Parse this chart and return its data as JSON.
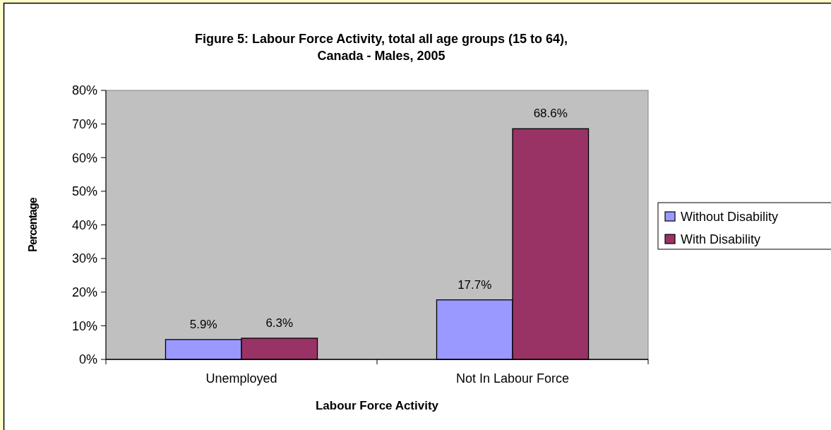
{
  "chart_data": {
    "type": "bar",
    "title": "Figure 5: Labour Force Activity, total all age groups (15 to 64), Canada - Males, 2005",
    "xlabel": "Labour Force Activity",
    "ylabel": "Percentage",
    "categories": [
      "Unemployed",
      "Not In Labour Force"
    ],
    "series": [
      {
        "name": "Without Disability",
        "color": "#9999ff",
        "values": [
          5.9,
          17.7
        ]
      },
      {
        "name": "With Disability",
        "color": "#993366",
        "values": [
          6.3,
          68.6
        ]
      }
    ],
    "value_labels": [
      [
        "5.9%",
        "17.7%"
      ],
      [
        "6.3%",
        "68.6%"
      ]
    ],
    "ylim": [
      0,
      80
    ],
    "yticks": [
      {
        "value": 0,
        "label": "0%"
      },
      {
        "value": 10,
        "label": "10%"
      },
      {
        "value": 20,
        "label": "20%"
      },
      {
        "value": 30,
        "label": "30%"
      },
      {
        "value": 40,
        "label": "40%"
      },
      {
        "value": 50,
        "label": "50%"
      },
      {
        "value": 60,
        "label": "60%"
      },
      {
        "value": 70,
        "label": "70%"
      },
      {
        "value": 80,
        "label": "80%"
      }
    ],
    "grid": false,
    "legend": "right"
  }
}
